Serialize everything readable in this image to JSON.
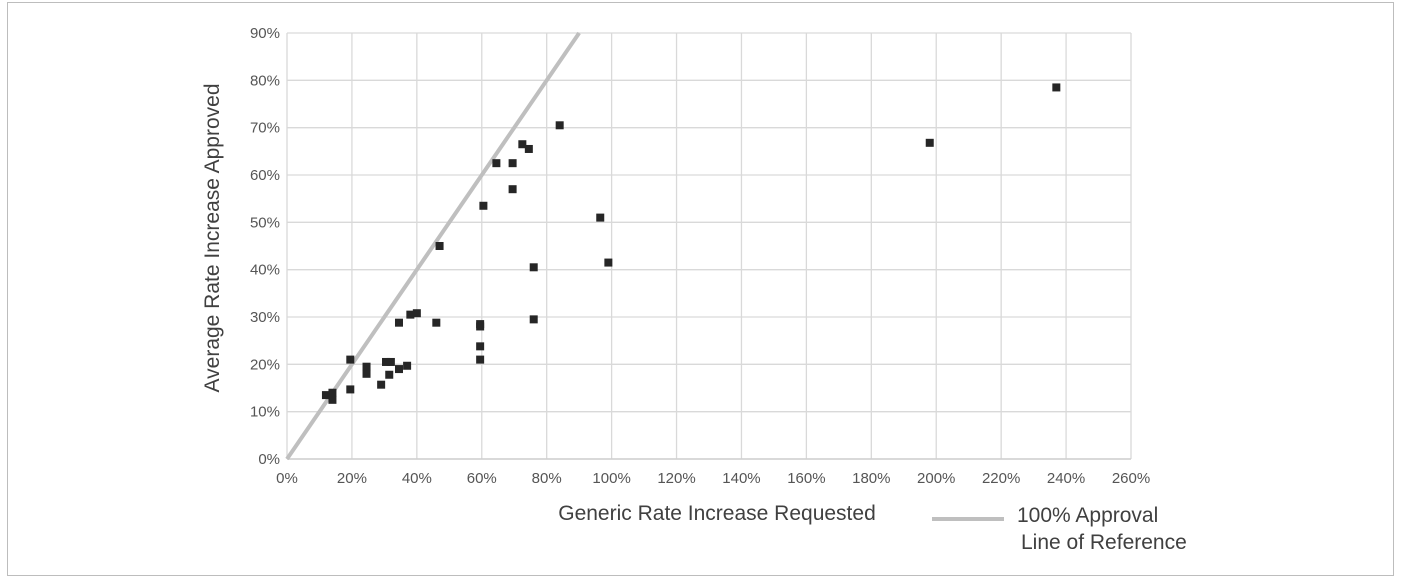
{
  "chart_data": {
    "type": "scatter",
    "xlabel": "Generic Rate Increase Requested",
    "ylabel": "Average Rate Increase Approved",
    "xlim": [
      0,
      2.6
    ],
    "ylim": [
      0,
      0.9
    ],
    "x_ticks": [
      "0%",
      "20%",
      "40%",
      "60%",
      "80%",
      "100%",
      "120%",
      "140%",
      "160%",
      "180%",
      "200%",
      "220%",
      "240%",
      "260%"
    ],
    "y_ticks": [
      "0%",
      "10%",
      "20%",
      "30%",
      "40%",
      "50%",
      "60%",
      "70%",
      "80%",
      "90%"
    ],
    "grid": true,
    "legend_position": "bottom-right",
    "series": [
      {
        "type": "scatter",
        "color": "#262626",
        "points": [
          {
            "x": 0.12,
            "y": 0.135
          },
          {
            "x": 0.14,
            "y": 0.14
          },
          {
            "x": 0.14,
            "y": 0.125
          },
          {
            "x": 0.195,
            "y": 0.21
          },
          {
            "x": 0.195,
            "y": 0.147
          },
          {
            "x": 0.245,
            "y": 0.195
          },
          {
            "x": 0.245,
            "y": 0.18
          },
          {
            "x": 0.29,
            "y": 0.157
          },
          {
            "x": 0.305,
            "y": 0.205
          },
          {
            "x": 0.315,
            "y": 0.178
          },
          {
            "x": 0.32,
            "y": 0.205
          },
          {
            "x": 0.345,
            "y": 0.19
          },
          {
            "x": 0.345,
            "y": 0.288
          },
          {
            "x": 0.37,
            "y": 0.197
          },
          {
            "x": 0.38,
            "y": 0.305
          },
          {
            "x": 0.4,
            "y": 0.308
          },
          {
            "x": 0.46,
            "y": 0.288
          },
          {
            "x": 0.47,
            "y": 0.45
          },
          {
            "x": 0.595,
            "y": 0.21
          },
          {
            "x": 0.595,
            "y": 0.238
          },
          {
            "x": 0.595,
            "y": 0.28
          },
          {
            "x": 0.595,
            "y": 0.285
          },
          {
            "x": 0.605,
            "y": 0.535
          },
          {
            "x": 0.645,
            "y": 0.625
          },
          {
            "x": 0.695,
            "y": 0.57
          },
          {
            "x": 0.695,
            "y": 0.625
          },
          {
            "x": 0.725,
            "y": 0.665
          },
          {
            "x": 0.745,
            "y": 0.655
          },
          {
            "x": 0.76,
            "y": 0.405
          },
          {
            "x": 0.76,
            "y": 0.295
          },
          {
            "x": 0.84,
            "y": 0.705
          },
          {
            "x": 0.965,
            "y": 0.51
          },
          {
            "x": 0.99,
            "y": 0.415
          },
          {
            "x": 1.98,
            "y": 0.668
          },
          {
            "x": 2.37,
            "y": 0.785
          }
        ]
      },
      {
        "type": "line",
        "name": "100% Approval Line of Reference",
        "color": "#bfbfbf",
        "points": [
          {
            "x": 0,
            "y": 0
          },
          {
            "x": 0.9,
            "y": 0.9
          }
        ]
      }
    ],
    "legend": {
      "line1": "100% Approval",
      "line2": "Line of Reference"
    }
  }
}
